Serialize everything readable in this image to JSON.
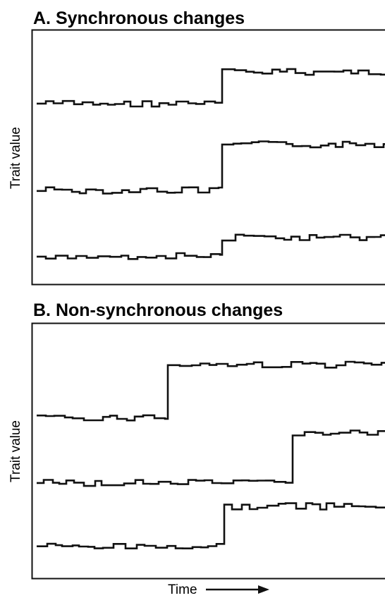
{
  "panels": [
    {
      "title": "A. Synchronous changes",
      "y_label": "Trait value"
    },
    {
      "title": "B. Non-synchronous changes",
      "y_label": "Trait value"
    }
  ],
  "x_label": "Time"
}
